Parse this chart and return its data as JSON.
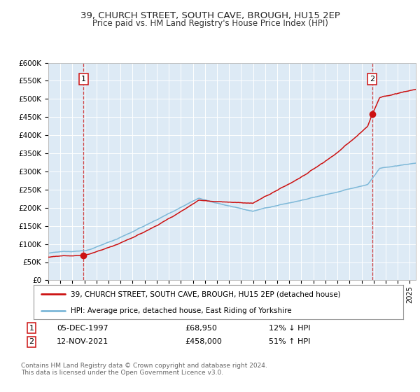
{
  "title": "39, CHURCH STREET, SOUTH CAVE, BROUGH, HU15 2EP",
  "subtitle": "Price paid vs. HM Land Registry's House Price Index (HPI)",
  "sale1_date": "05-DEC-1997",
  "sale1_price": 68950,
  "sale1_year": 1997.92,
  "sale2_date": "12-NOV-2021",
  "sale2_price": 458000,
  "sale2_year": 2021.87,
  "legend_line1": "39, CHURCH STREET, SOUTH CAVE, BROUGH, HU15 2EP (detached house)",
  "legend_line2": "HPI: Average price, detached house, East Riding of Yorkshire",
  "footer": "Contains HM Land Registry data © Crown copyright and database right 2024.\nThis data is licensed under the Open Government Licence v3.0.",
  "ylim": [
    0,
    600000
  ],
  "xlim_start": 1995.0,
  "xlim_end": 2025.5,
  "hpi_color": "#7db8d8",
  "property_color": "#cc1111",
  "sale_marker_color": "#cc1111",
  "plot_bg": "#ddeaf5",
  "grid_color": "#ffffff",
  "dashed_line_color": "#cc2222",
  "table1_date": "05-DEC-1997",
  "table1_price": "£68,950",
  "table1_hpi": "12% ↓ HPI",
  "table2_date": "12-NOV-2021",
  "table2_price": "£458,000",
  "table2_hpi": "51% ↑ HPI"
}
